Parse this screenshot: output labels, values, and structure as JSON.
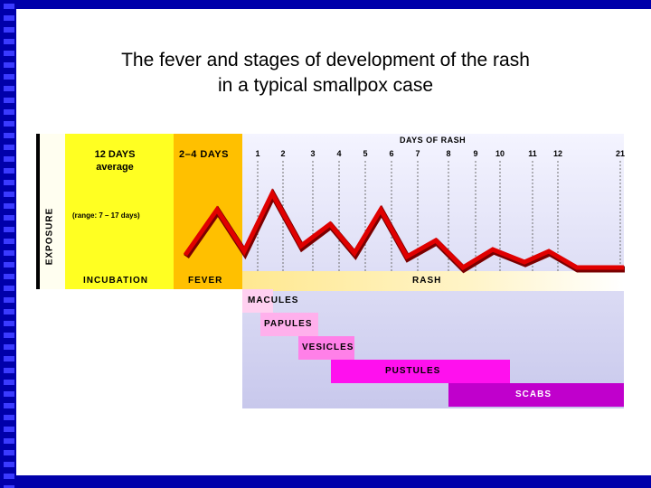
{
  "title": "The fever and stages of development of the rash\nin a typical smallpox case",
  "exposure_label": "EXPOSURE",
  "incubation": {
    "duration": "12 DAYS",
    "duration_sub": "average",
    "range": "(range: 7 – 17 days)",
    "label": "INCUBATION"
  },
  "fever": {
    "duration": "2–4 DAYS",
    "label": "FEVER"
  },
  "rash": {
    "header": "DAYS OF RASH",
    "label": "RASH",
    "days": [
      "1",
      "2",
      "3",
      "4",
      "5",
      "6",
      "7",
      "8",
      "9",
      "10",
      "11",
      "12",
      "21"
    ]
  },
  "stages": [
    "MACULES",
    "PAPULES",
    "VESICLES",
    "PUSTULES",
    "SCABS"
  ],
  "colors": {
    "background": "#0000aa",
    "incubation": "#ffff22",
    "fever": "#ffc000",
    "fever_line": "#e00000",
    "macules": "#ffd0f0",
    "papules": "#ffb0ec",
    "vesicles": "#ff80e8",
    "pustules": "#ff10ee",
    "scabs": "#c000cc"
  }
}
